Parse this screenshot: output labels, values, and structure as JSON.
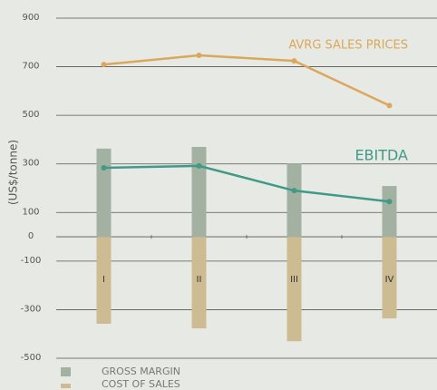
{
  "chart_data": {
    "type": "bar",
    "y_label": "(US$/tonne)",
    "categories": [
      "I",
      "II",
      "III",
      "IV"
    ],
    "ylim": [
      -500,
      900
    ],
    "yticks": [
      900,
      700,
      500,
      300,
      100,
      0,
      -100,
      -300,
      -500
    ],
    "grid": true,
    "series": [
      {
        "name": "GROSS MARGIN",
        "type": "bar",
        "color": "#a3b1a3",
        "values": [
          363,
          370,
          300,
          209
        ]
      },
      {
        "name": "COST OF SALES",
        "type": "bar",
        "color": "#cdbb91",
        "values": [
          -358,
          -377,
          -430,
          -336
        ]
      },
      {
        "name": "AVRG SALES PRICES",
        "type": "line",
        "color": "#dba75c",
        "values": [
          709,
          747,
          724,
          540
        ]
      },
      {
        "name": "EBITDA",
        "type": "line",
        "color": "#3f9a86",
        "values": [
          284,
          292,
          190,
          145
        ]
      }
    ]
  }
}
